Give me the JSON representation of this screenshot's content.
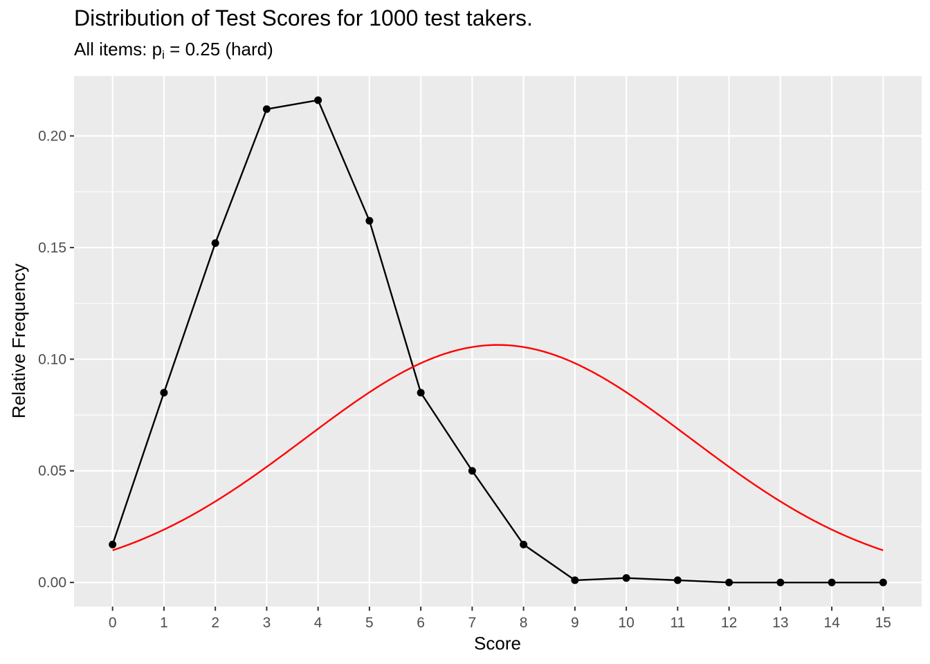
{
  "chart_data": {
    "type": "line",
    "title": "Distribution of Test Scores for 1000 test takers.",
    "subtitle": {
      "prefix": "All items: p",
      "subscript": "i",
      "suffix": " = 0.25 (hard)"
    },
    "xlabel": "Score",
    "ylabel": "Relative Frequency",
    "xlim": [
      -0.75,
      15.75
    ],
    "ylim": [
      -0.0108,
      0.2268
    ],
    "x_ticks": [
      0,
      1,
      2,
      3,
      4,
      5,
      6,
      7,
      8,
      9,
      10,
      11,
      12,
      13,
      14,
      15
    ],
    "y_ticks": [
      0.0,
      0.05,
      0.1,
      0.15,
      0.2
    ],
    "y_tick_labels": [
      "0.00",
      "0.05",
      "0.10",
      "0.15",
      "0.20"
    ],
    "grid": true,
    "legend": "none",
    "series": [
      {
        "kind": "observed",
        "color": "#000000",
        "markers": true,
        "x": [
          0,
          1,
          2,
          3,
          4,
          5,
          6,
          7,
          8,
          9,
          10,
          11,
          12,
          13,
          14,
          15
        ],
        "y": [
          0.017,
          0.085,
          0.152,
          0.212,
          0.216,
          0.162,
          0.085,
          0.05,
          0.017,
          0.001,
          0.002,
          0.001,
          0.0,
          0.0,
          0.0,
          0.0
        ]
      },
      {
        "kind": "normal-curve",
        "color": "#ff0000",
        "markers": false,
        "mean": 7.5,
        "sd": 3.75,
        "x_range": [
          0,
          15
        ]
      }
    ]
  }
}
